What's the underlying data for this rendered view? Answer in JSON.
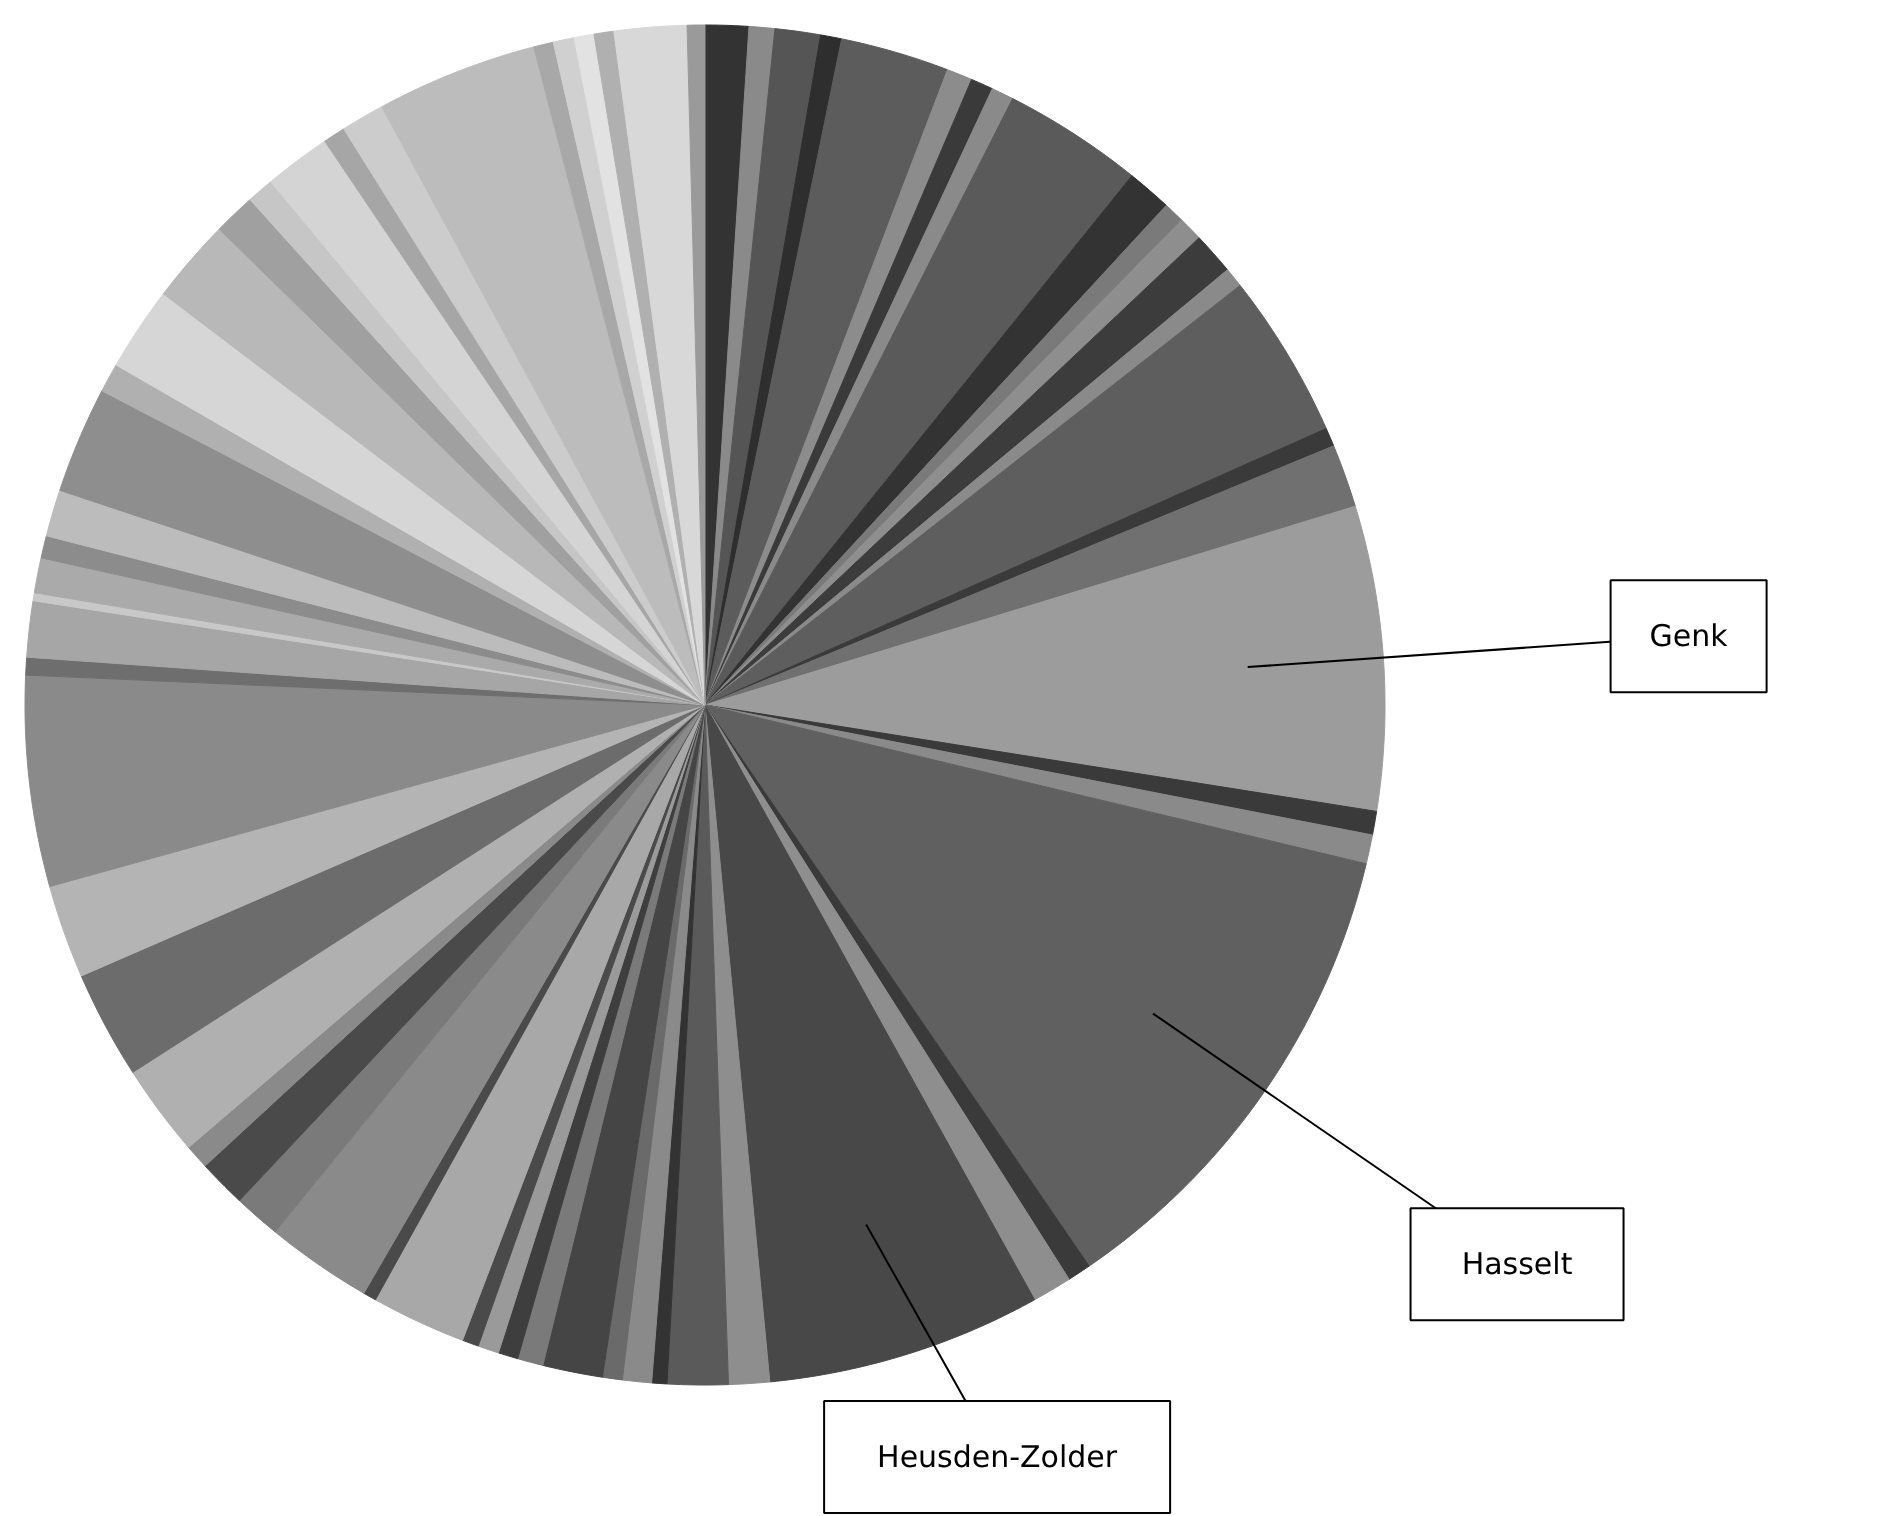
{
  "chart_data": {
    "type": "pie",
    "categories": [
      null,
      null,
      null,
      null,
      null,
      null,
      null,
      null,
      null,
      null,
      null,
      null,
      null,
      null,
      null,
      null,
      null,
      "Genk",
      null,
      null,
      "Hasselt",
      null,
      null,
      "Heusden-Zolder",
      null,
      null,
      null,
      null,
      null,
      null,
      null,
      null,
      null,
      null,
      null,
      null,
      null,
      null,
      null,
      null,
      null,
      null,
      null,
      null,
      null,
      null,
      null,
      null,
      null,
      null,
      null,
      null,
      null,
      null,
      null,
      null,
      null,
      null,
      null,
      null,
      null,
      null,
      null,
      null,
      null,
      null
    ],
    "values": [
      1.03,
      0.61,
      1.08,
      0.5,
      2.58,
      0.61,
      0.53,
      0.53,
      3.33,
      1.06,
      0.5,
      0.58,
      1.0,
      0.47,
      3.92,
      0.44,
      1.5,
      7.22,
      0.56,
      0.69,
      11.69,
      0.56,
      0.94,
      6.53,
      0.97,
      1.44,
      0.36,
      0.69,
      0.47,
      1.42,
      0.61,
      0.47,
      0.5,
      0.39,
      2.25,
      0.31,
      2.53,
      1.11,
      1.14,
      0.58,
      2.19,
      2.56,
      2.22,
      5.0,
      0.42,
      1.33,
      0.19,
      0.83,
      0.53,
      1.11,
      2.53,
      0.69,
      2.0,
      2.0,
      1.0,
      0.64,
      1.58,
      0.53,
      1.03,
      3.83,
      0.47,
      0.5,
      0.47,
      0.47,
      1.72,
      0.42
    ],
    "colors": [
      "#333333",
      "#8a8a8a",
      "#555555",
      "#2e2e2e",
      "#5c5c5c",
      "#8c8c8c",
      "#3a3a3a",
      "#8a8a8a",
      "#5a5a5a",
      "#333333",
      "#7a7a7a",
      "#8e8e8e",
      "#3c3c3c",
      "#8a8a8a",
      "#5e5e5e",
      "#3a3a3a",
      "#707070",
      "#9c9c9c",
      "#3a3a3a",
      "#8a8a8a",
      "#606060",
      "#3a3a3a",
      "#8e8e8e",
      "#484848",
      "#8e8e8e",
      "#5a5a5a",
      "#333333",
      "#8a8a8a",
      "#6a6a6a",
      "#454545",
      "#7a7a7a",
      "#3e3e3e",
      "#9a9a9a",
      "#4a4a4a",
      "#a8a8a8",
      "#4a4a4a",
      "#8a8a8a",
      "#7a7a7a",
      "#4a4a4a",
      "#8a8a8a",
      "#b0b0b0",
      "#6c6c6c",
      "#b4b4b4",
      "#8a8a8a",
      "#6e6e6e",
      "#a6a6a6",
      "#c8c8c8",
      "#aaaaaa",
      "#8c8c8c",
      "#bcbcbc",
      "#8e8e8e",
      "#b0b0b0",
      "#d6d6d6",
      "#b8b8b8",
      "#a0a0a0",
      "#c6c6c6",
      "#d4d4d4",
      "#a6a6a6",
      "#cccccc",
      "#bcbcbc",
      "#a8a8a8",
      "#d0d0d0",
      "#e2e2e2",
      "#b0b0b0",
      "#d8d8d8",
      "#9a9a9a"
    ]
  }
}
